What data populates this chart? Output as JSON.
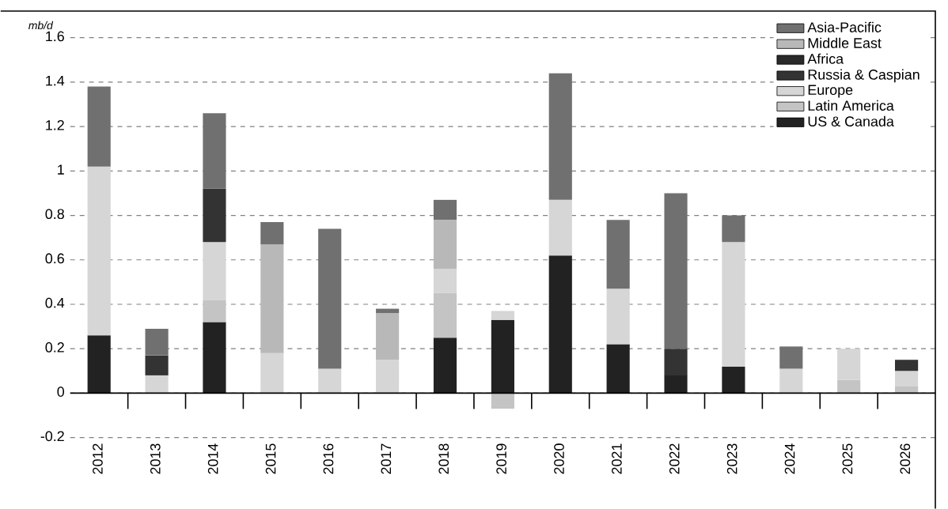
{
  "chart_data": {
    "type": "bar",
    "stacked": true,
    "ylabel": "mb/d",
    "categories": [
      "2012",
      "2013",
      "2014",
      "2015",
      "2016",
      "2017",
      "2018",
      "2019",
      "2020",
      "2021",
      "2022",
      "2023",
      "2024",
      "2025",
      "2026"
    ],
    "series": [
      {
        "name": "US & Canada",
        "color": "#222222",
        "values": [
          0.26,
          0,
          0.32,
          0,
          0,
          0,
          0.25,
          0.33,
          0.62,
          0.22,
          0.08,
          0.12,
          0,
          0,
          0
        ]
      },
      {
        "name": "Latin America",
        "color": "#c4c4c4",
        "values": [
          0,
          0,
          0.1,
          0,
          0,
          0,
          0.2,
          -0.07,
          0,
          0,
          0,
          0,
          0,
          0.06,
          0.03
        ]
      },
      {
        "name": "Europe",
        "color": "#d6d6d6",
        "values": [
          0.76,
          0.08,
          0.26,
          0.18,
          0.11,
          0.15,
          0.11,
          0.04,
          0.25,
          0.25,
          0,
          0.56,
          0.11,
          0.14,
          0.07
        ]
      },
      {
        "name": "Russia & Caspian",
        "color": "#333333",
        "values": [
          0,
          0.09,
          0.24,
          0,
          0,
          0,
          0,
          0,
          0,
          0,
          0.12,
          0,
          0,
          0,
          0.05
        ]
      },
      {
        "name": "Africa",
        "color": "#2a2a2a",
        "values": [
          0,
          0,
          0,
          0,
          0,
          0,
          0,
          0,
          0,
          0,
          0,
          0,
          0,
          0,
          0
        ]
      },
      {
        "name": "Middle East",
        "color": "#b8b8b8",
        "values": [
          0,
          0,
          0,
          0.49,
          0,
          0.21,
          0.22,
          0,
          0,
          0,
          0,
          0,
          0,
          0,
          0
        ]
      },
      {
        "name": "Asia-Pacific",
        "color": "#707070",
        "values": [
          0.36,
          0.12,
          0.34,
          0.1,
          0.63,
          0.02,
          0.09,
          0,
          0.57,
          0.31,
          0.7,
          0.12,
          0.1,
          0,
          0
        ]
      }
    ],
    "ylim": [
      -0.2,
      1.72
    ],
    "yticks": [
      -0.2,
      0,
      0.2,
      0.4,
      0.6,
      0.8,
      1,
      1.2,
      1.4,
      1.6
    ],
    "grid": "y",
    "legend": "top right"
  }
}
